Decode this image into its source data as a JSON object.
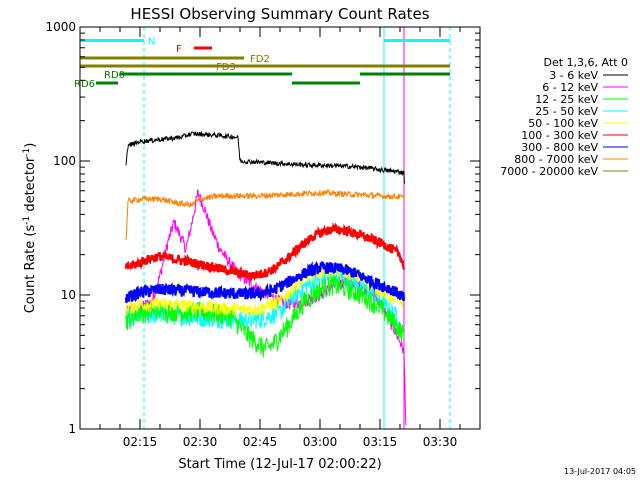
{
  "chart_data": {
    "type": "line",
    "title": "HESSI Observing Summary Count Rates",
    "xlabel": "Start Time (12-Jul-17 02:00:22)",
    "ylabel_main": "Count Rate (s",
    "ylabel_sup1": "-1",
    "ylabel_mid": " detector",
    "ylabel_sup2": "-1",
    "ylabel_end": ")",
    "y_scale": "log",
    "ylim": [
      1,
      1000
    ],
    "xlim_minutes": [
      0,
      100
    ],
    "x_ticks": [
      {
        "label": "02:15",
        "minutes": 15
      },
      {
        "label": "02:30",
        "minutes": 30
      },
      {
        "label": "02:45",
        "minutes": 45
      },
      {
        "label": "03:00",
        "minutes": 60
      },
      {
        "label": "03:15",
        "minutes": 75
      },
      {
        "label": "03:30",
        "minutes": 90
      }
    ],
    "y_ticks": [
      {
        "label": "1",
        "value": 1
      },
      {
        "label": "10",
        "value": 10
      },
      {
        "label": "100",
        "value": 100
      },
      {
        "label": "1000",
        "value": 1000
      }
    ],
    "legend_placement": "right",
    "legend_header": "Det 1,3,6, Att 0",
    "timestamp": "13-Jul-2017 04:05",
    "series": [
      {
        "name": "3 - 6 keV",
        "color": "#000000",
        "points": [
          [
            11.5,
            95
          ],
          [
            12,
            130
          ],
          [
            15,
            140
          ],
          [
            20,
            145
          ],
          [
            25,
            150
          ],
          [
            28,
            160
          ],
          [
            31,
            158
          ],
          [
            35,
            155
          ],
          [
            38,
            152
          ],
          [
            39.5,
            150
          ],
          [
            40,
            100
          ],
          [
            45,
            98
          ],
          [
            50,
            96
          ],
          [
            55,
            94
          ],
          [
            60,
            93
          ],
          [
            65,
            92
          ],
          [
            70,
            90
          ],
          [
            73,
            88
          ],
          [
            75,
            86
          ],
          [
            78,
            84
          ],
          [
            80,
            83
          ],
          [
            81,
            82
          ],
          [
            81.2,
            60
          ]
        ]
      },
      {
        "name": "6 - 12 keV",
        "color": "#ff00ff",
        "points": [
          [
            11.5,
            7.5
          ],
          [
            15,
            8
          ],
          [
            18,
            9
          ],
          [
            20,
            14
          ],
          [
            22,
            25
          ],
          [
            23.5,
            35
          ],
          [
            25,
            28
          ],
          [
            26.5,
            22
          ],
          [
            28,
            35
          ],
          [
            29.5,
            58
          ],
          [
            31,
            45
          ],
          [
            33,
            30
          ],
          [
            35,
            22
          ],
          [
            37,
            18
          ],
          [
            40,
            14
          ],
          [
            43,
            12
          ],
          [
            46,
            10.5
          ],
          [
            50,
            9
          ],
          [
            53,
            8.5
          ],
          [
            56,
            9
          ],
          [
            60,
            10
          ],
          [
            63,
            11.5
          ],
          [
            66,
            12.5
          ],
          [
            69,
            12
          ],
          [
            72,
            11
          ],
          [
            75,
            9
          ],
          [
            78,
            6
          ],
          [
            80,
            4.5
          ],
          [
            81,
            3.8
          ],
          [
            81.5,
            1
          ]
        ]
      },
      {
        "name": "12 - 25 keV",
        "color": "#00ff00",
        "points": [
          [
            11.5,
            6.5
          ],
          [
            15,
            7.5
          ],
          [
            20,
            7.8
          ],
          [
            25,
            7.6
          ],
          [
            30,
            7.5
          ],
          [
            35,
            7.3
          ],
          [
            38,
            7
          ],
          [
            40,
            5.8
          ],
          [
            42,
            5
          ],
          [
            44,
            4.5
          ],
          [
            46,
            4
          ],
          [
            48,
            4.2
          ],
          [
            50,
            5
          ],
          [
            53,
            6.5
          ],
          [
            56,
            9
          ],
          [
            60,
            11
          ],
          [
            63,
            12
          ],
          [
            66,
            11.5
          ],
          [
            69,
            10.5
          ],
          [
            72,
            9.5
          ],
          [
            75,
            8
          ],
          [
            78,
            6.5
          ],
          [
            80,
            5.5
          ],
          [
            81,
            5
          ]
        ]
      },
      {
        "name": "25 - 50 keV",
        "color": "#00ffff",
        "points": [
          [
            11.5,
            6.8
          ],
          [
            15,
            7
          ],
          [
            20,
            7.2
          ],
          [
            25,
            7
          ],
          [
            30,
            6.8
          ],
          [
            35,
            6.7
          ],
          [
            40,
            6.5
          ],
          [
            45,
            6.6
          ],
          [
            50,
            7.5
          ],
          [
            53,
            9.5
          ],
          [
            56,
            11.5
          ],
          [
            60,
            13
          ],
          [
            63,
            14
          ],
          [
            66,
            13.5
          ],
          [
            69,
            12.5
          ],
          [
            72,
            11
          ],
          [
            75,
            9
          ],
          [
            78,
            7.5
          ],
          [
            80,
            6.5
          ]
        ]
      },
      {
        "name": "50 - 100 keV",
        "color": "#ffff00",
        "points": [
          [
            11.5,
            8
          ],
          [
            15,
            8.5
          ],
          [
            20,
            8.6
          ],
          [
            25,
            8.4
          ],
          [
            30,
            8.2
          ],
          [
            35,
            8
          ],
          [
            40,
            7.8
          ],
          [
            45,
            7.9
          ],
          [
            50,
            9
          ],
          [
            53,
            11
          ],
          [
            56,
            13.5
          ],
          [
            60,
            15
          ],
          [
            63,
            15.5
          ],
          [
            66,
            15
          ],
          [
            69,
            14
          ],
          [
            72,
            12.5
          ],
          [
            75,
            11
          ],
          [
            78,
            9.5
          ],
          [
            80,
            9
          ],
          [
            81,
            9
          ]
        ]
      },
      {
        "name": "100 - 300 keV",
        "color": "#ff0000",
        "points": [
          [
            11.5,
            16
          ],
          [
            14,
            17
          ],
          [
            16,
            18
          ],
          [
            18,
            19
          ],
          [
            20,
            19.5
          ],
          [
            22,
            19
          ],
          [
            24,
            18.5
          ],
          [
            26,
            18
          ],
          [
            28,
            17.5
          ],
          [
            30,
            17
          ],
          [
            32,
            16.5
          ],
          [
            34,
            16
          ],
          [
            36,
            15.5
          ],
          [
            38,
            15
          ],
          [
            40,
            14.5
          ],
          [
            43,
            14
          ],
          [
            46,
            14.5
          ],
          [
            49,
            16
          ],
          [
            52,
            19
          ],
          [
            55,
            23
          ],
          [
            58,
            27
          ],
          [
            61,
            30
          ],
          [
            64,
            31
          ],
          [
            67,
            30
          ],
          [
            70,
            28
          ],
          [
            73,
            26
          ],
          [
            76,
            24
          ],
          [
            78,
            22
          ],
          [
            80,
            20
          ],
          [
            81,
            16
          ]
        ]
      },
      {
        "name": "300 - 800 keV",
        "color": "#0000ff",
        "points": [
          [
            11.5,
            9.5
          ],
          [
            15,
            10.5
          ],
          [
            20,
            11
          ],
          [
            25,
            10.8
          ],
          [
            30,
            10.6
          ],
          [
            35,
            10.4
          ],
          [
            40,
            10.2
          ],
          [
            45,
            10.3
          ],
          [
            48,
            10.8
          ],
          [
            51,
            12
          ],
          [
            54,
            13.5
          ],
          [
            57,
            15
          ],
          [
            60,
            16
          ],
          [
            63,
            16
          ],
          [
            66,
            15.5
          ],
          [
            69,
            14.5
          ],
          [
            72,
            13
          ],
          [
            75,
            12
          ],
          [
            78,
            11
          ],
          [
            80,
            10
          ],
          [
            81,
            9.5
          ]
        ]
      },
      {
        "name": "800 - 7000 keV",
        "color": "#ff8000",
        "points": [
          [
            11.5,
            25
          ],
          [
            12,
            50
          ],
          [
            15,
            52
          ],
          [
            20,
            52
          ],
          [
            25,
            48
          ],
          [
            28,
            47
          ],
          [
            30,
            52
          ],
          [
            35,
            55
          ],
          [
            40,
            55
          ],
          [
            45,
            55
          ],
          [
            50,
            56
          ],
          [
            55,
            57
          ],
          [
            60,
            58
          ],
          [
            65,
            57
          ],
          [
            70,
            56
          ],
          [
            75,
            55
          ],
          [
            80,
            54
          ],
          [
            81,
            53
          ]
        ]
      },
      {
        "name": "7000 - 20000 keV",
        "color": "#808000",
        "points": []
      }
    ],
    "flag_bars": [
      {
        "label": "N",
        "color": "#00ffff",
        "y": 1,
        "segments": [
          [
            0,
            16
          ],
          [
            76,
            92.5
          ]
        ],
        "label_at": 17
      },
      {
        "label": "F",
        "color": "#ff0000",
        "y": 2,
        "segments": [
          [
            28.5,
            33
          ]
        ],
        "label_at": 24
      },
      {
        "label": "FD2",
        "color": "#808000",
        "y": 3,
        "segments": [
          [
            0,
            41
          ]
        ],
        "label_at": 42.5
      },
      {
        "label": "FD3",
        "color": "#808000",
        "y": 4,
        "segments": [
          [
            0,
            92.5
          ]
        ],
        "label_at": 34
      },
      {
        "label": "RD0",
        "color": "#008000",
        "y": 5,
        "segments": [
          [
            10,
            53
          ],
          [
            70,
            92.5
          ]
        ],
        "label_at": 6
      },
      {
        "label": "RD6",
        "color": "#008000",
        "y": 6,
        "segments": [
          [
            4,
            9.5
          ],
          [
            53,
            70
          ]
        ],
        "label_at": -1.5
      }
    ],
    "vlines": [
      {
        "minutes": 0,
        "style": "solid",
        "color": "#00ffff"
      },
      {
        "minutes": 16,
        "style": "dashed",
        "color": "#00ffff"
      },
      {
        "minutes": 76,
        "style": "solid",
        "color": "#00ffff"
      },
      {
        "minutes": 92.5,
        "style": "dashed",
        "color": "#00ffff"
      },
      {
        "minutes": 81,
        "style": "solid",
        "color": "#ff00ff"
      }
    ]
  }
}
